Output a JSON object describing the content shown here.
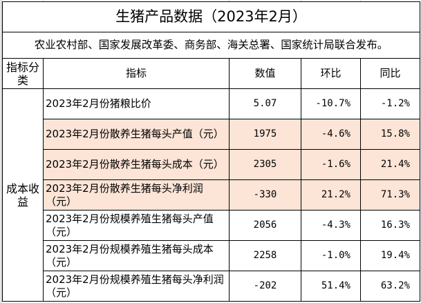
{
  "title": "生猪产品数据（2023年2月）",
  "subtitle": "农业农村部、国家发展改革委、商务部、海关总署、国家统计局联合发布。",
  "headers": [
    "指标分类",
    "指标",
    "数值",
    "环比",
    "同比"
  ],
  "category": "成本收益",
  "highlight_color": "#fce4d6",
  "rows": [
    {
      "name": "2023年2月份猪粮比价",
      "value": "5.07",
      "mom": "-10.7%",
      "yoy": "-1.2%",
      "highlighted": false
    },
    {
      "name": "2023年2月份散养生猪每头产值（元）",
      "value": "1975",
      "mom": "-4.6%",
      "yoy": "15.8%",
      "highlighted": true
    },
    {
      "name": "2023年2月份散养生猪每头成本（元）",
      "value": "2305",
      "mom": "-1.6%",
      "yoy": "21.4%",
      "highlighted": true
    },
    {
      "name": "2023年2月份散养生猪每头净利润（元）",
      "value": "-330",
      "mom": "21.2%",
      "yoy": "71.3%",
      "highlighted": true
    },
    {
      "name": "2023年2月份规模养殖生猪每头产值（元）",
      "value": "2056",
      "mom": "-4.3%",
      "yoy": "16.3%",
      "highlighted": false
    },
    {
      "name": "2023年2月份规模养殖生猪每头成本（元）",
      "value": "2258",
      "mom": "-1.0%",
      "yoy": "19.4%",
      "highlighted": false
    },
    {
      "name": "2023年2月份规模养殖生猪每头净利润（元）",
      "value": "-202",
      "mom": "51.4%",
      "yoy": "63.2%",
      "highlighted": false
    }
  ]
}
